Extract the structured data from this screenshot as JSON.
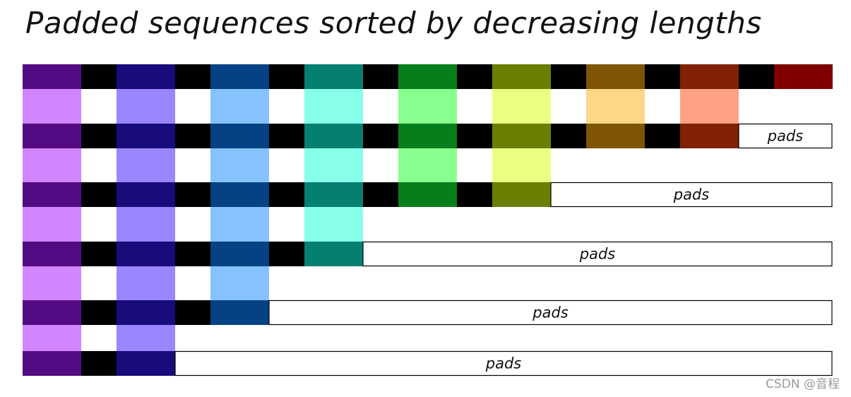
{
  "title": "Padded sequences sorted by decreasing lengths",
  "pad_label": "pads",
  "watermark": "CSDN @音程",
  "colors": {
    "separator": "#000000",
    "dark": [
      "#520b83",
      "#180b7c",
      "#044283",
      "#058070",
      "#067e1b",
      "#6c7e02",
      "#7e5504",
      "#7f2007",
      "#7f0000"
    ],
    "light": [
      "#d185ff",
      "#9a86ff",
      "#86c2ff",
      "#87ffe9",
      "#89ff8d",
      "#ebff83",
      "#fcd787",
      "#ffa185"
    ]
  },
  "sequences": [
    {
      "length": 9
    },
    {
      "length": 8
    },
    {
      "length": 6
    },
    {
      "length": 4
    },
    {
      "length": 3
    },
    {
      "length": 2
    }
  ]
}
